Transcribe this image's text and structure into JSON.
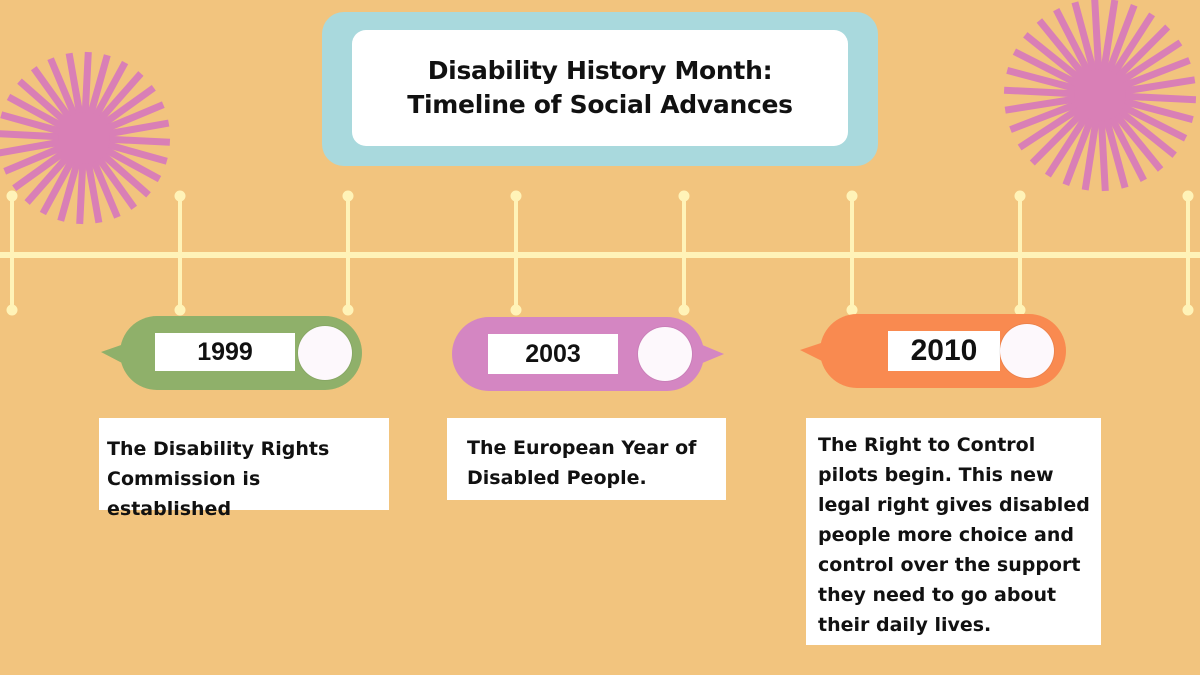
{
  "title": {
    "line1": "Disability History Month:",
    "line2": "Timeline of Social Advances"
  },
  "colors": {
    "background": "#f2c47e",
    "title_frame": "#a9d9dd",
    "timeline": "#fff3b8",
    "burst": "#d97fb6",
    "pill_1999": "#8fb06a",
    "pill_2003": "#d486c2",
    "pill_2010": "#f98a50"
  },
  "events": [
    {
      "year": "1999",
      "description": "The Disability Rights Commission is established"
    },
    {
      "year": "2003",
      "description": "The European Year of Disabled People."
    },
    {
      "year": "2010",
      "description": "The Right to Control pilots begin. This new legal right gives disabled people more choice and control over the support they need to go about their daily lives."
    }
  ]
}
